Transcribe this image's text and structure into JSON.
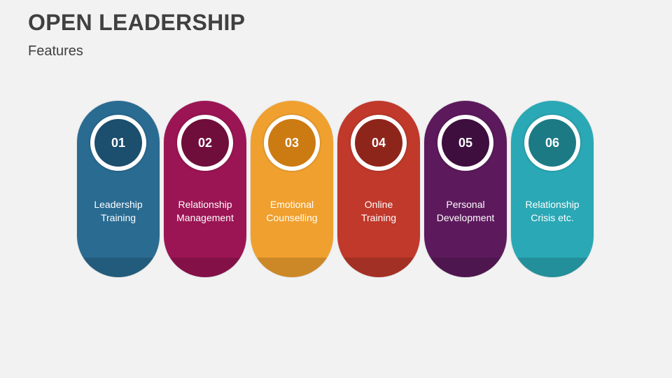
{
  "title": "OPEN LEADERSHIP",
  "subtitle": "Features",
  "items": [
    {
      "number": "01",
      "line1": "Leadership",
      "line2": "Training",
      "color": "#2a6b92",
      "inner": "#1c4e6d"
    },
    {
      "number": "02",
      "line1": "Relationship",
      "line2": "Management",
      "color": "#9b1554",
      "inner": "#6f0e3b"
    },
    {
      "number": "03",
      "line1": "Emotional",
      "line2": "Counselling",
      "color": "#f0a02e",
      "inner": "#cc7a12"
    },
    {
      "number": "04",
      "line1": "Online",
      "line2": "Training",
      "color": "#c0392b",
      "inner": "#8e251b"
    },
    {
      "number": "05",
      "line1": "Personal",
      "line2": "Development",
      "color": "#5c1a5c",
      "inner": "#3e0f3e"
    },
    {
      "number": "06",
      "line1": "Relationship",
      "line2": "Crisis etc.",
      "color": "#2aa8b5",
      "inner": "#1c7a85"
    }
  ]
}
